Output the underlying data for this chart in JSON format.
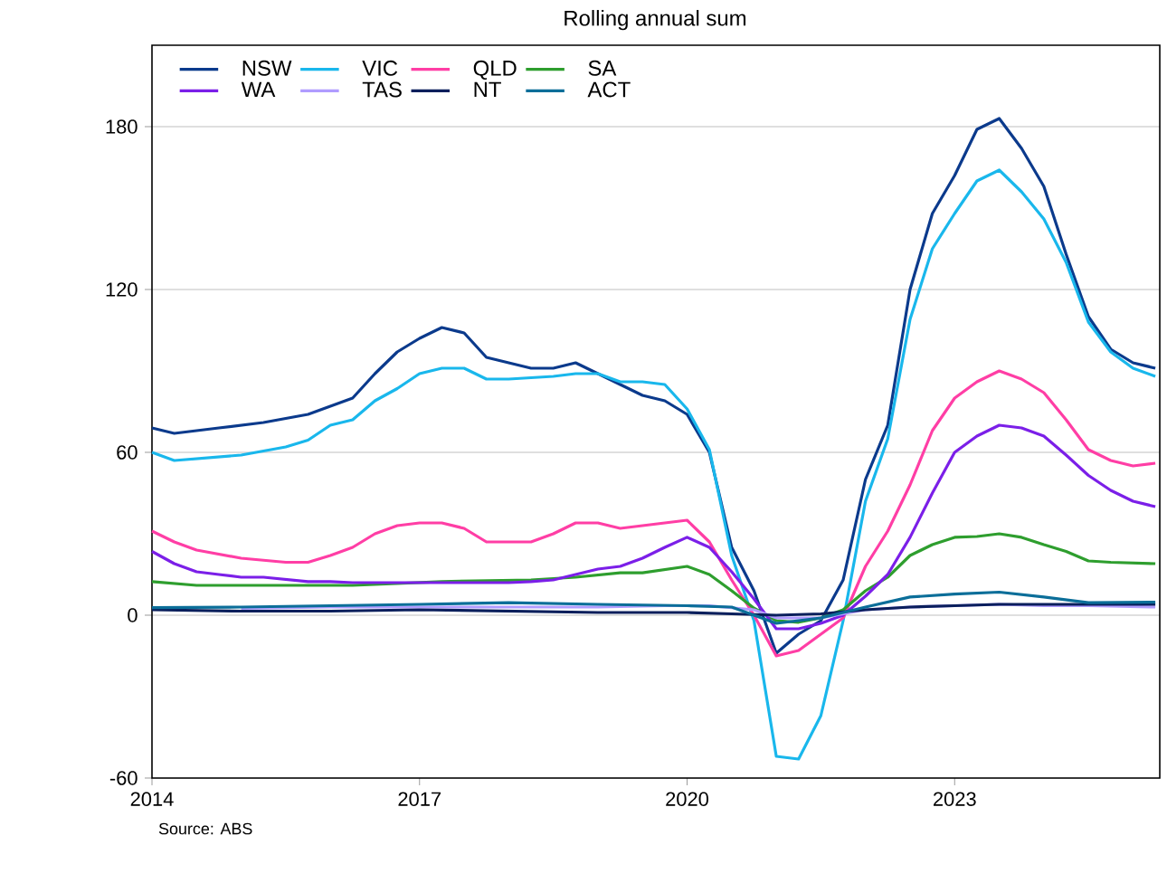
{
  "chart_data": {
    "type": "line",
    "title": "Rolling annual sum",
    "annotations": [
      "Source: ABS"
    ],
    "xlim": [
      2014,
      2025.3
    ],
    "xticks": [
      2014,
      2017,
      2020,
      2023
    ],
    "ylim": [
      -60,
      210
    ],
    "yticks": [
      -60,
      0,
      60,
      120,
      180
    ],
    "grid": "y",
    "legend": "top left",
    "marker": "none",
    "line_style": "solid",
    "series": [
      {
        "name": "NSW",
        "color": "#0b3a8c",
        "x": [
          2014,
          2014.25,
          2014.75,
          2015.25,
          2015.75,
          2016.25,
          2016.5,
          2016.75,
          2017,
          2017.25,
          2017.5,
          2017.75,
          2018,
          2018.25,
          2018.5,
          2018.75,
          2019,
          2019.25,
          2019.5,
          2019.75,
          2020,
          2020.25,
          2020.5,
          2020.75,
          2021,
          2021.25,
          2021.5,
          2021.75,
          2022,
          2022.25,
          2022.5,
          2022.75,
          2023,
          2023.25,
          2023.5,
          2023.75,
          2024,
          2024.25,
          2024.5,
          2024.75,
          2025,
          2025.25
        ],
        "values": [
          69,
          67,
          69,
          71,
          74,
          80,
          89,
          97,
          102,
          106,
          104,
          95,
          93,
          91,
          91,
          93,
          89,
          85,
          81,
          79,
          74,
          60,
          25,
          9,
          -14,
          -7,
          -2,
          13,
          50,
          70,
          120,
          148,
          162,
          179,
          183,
          172,
          158,
          133,
          110,
          98,
          93,
          91
        ]
      },
      {
        "name": "VIC",
        "color": "#19b7ec",
        "x": [
          2014,
          2014.25,
          2015,
          2015.5,
          2015.75,
          2016,
          2016.25,
          2016.5,
          2016.75,
          2017,
          2017.25,
          2017.5,
          2017.75,
          2018,
          2018.5,
          2018.75,
          2019,
          2019.25,
          2019.5,
          2019.75,
          2020,
          2020.25,
          2020.5,
          2020.75,
          2021,
          2021.25,
          2021.5,
          2021.75,
          2022,
          2022.25,
          2022.5,
          2022.75,
          2023,
          2023.25,
          2023.5,
          2023.75,
          2024,
          2024.25,
          2024.5,
          2024.75,
          2025,
          2025.25
        ],
        "values": [
          60,
          57,
          59,
          62,
          64.5,
          70,
          72,
          79,
          83.5,
          89,
          91,
          91,
          87,
          87,
          88,
          89,
          89,
          86,
          86,
          85,
          76,
          61,
          22,
          -2,
          -52,
          -53,
          -37,
          -2,
          42,
          65,
          109,
          135,
          148,
          160,
          164,
          156,
          146,
          130,
          108,
          97,
          91,
          88
        ]
      },
      {
        "name": "QLD",
        "color": "#ff3ea5",
        "x": [
          2014,
          2014.25,
          2014.5,
          2015,
          2015.5,
          2015.75,
          2016,
          2016.25,
          2016.5,
          2016.75,
          2017,
          2017.25,
          2017.5,
          2017.75,
          2018.25,
          2018.5,
          2018.75,
          2019,
          2019.25,
          2019.5,
          2019.75,
          2020,
          2020.25,
          2020.5,
          2020.75,
          2021,
          2021.25,
          2021.5,
          2021.75,
          2022,
          2022.25,
          2022.5,
          2022.75,
          2023,
          2023.25,
          2023.5,
          2023.75,
          2024,
          2024.25,
          2024.5,
          2024.75,
          2025,
          2025.25
        ],
        "values": [
          31,
          27,
          24,
          21,
          19.5,
          19.5,
          22,
          25,
          30,
          33,
          34,
          34,
          32,
          27,
          27,
          30,
          34,
          34,
          32,
          33,
          34,
          35,
          27,
          13,
          0,
          -15,
          -13,
          -7,
          -1,
          18,
          31,
          48,
          68,
          80,
          86,
          90,
          87,
          82,
          72,
          61,
          57,
          55,
          56
        ]
      },
      {
        "name": "SA",
        "color": "#2e9e2e",
        "x": [
          2014,
          2014.5,
          2015.25,
          2016.25,
          2017.25,
          2018.25,
          2018.75,
          2019.25,
          2019.5,
          2020,
          2020.25,
          2020.5,
          2020.75,
          2021,
          2021.25,
          2021.5,
          2021.75,
          2022,
          2022.25,
          2022.5,
          2022.75,
          2023,
          2023.25,
          2023.5,
          2023.75,
          2024,
          2024.25,
          2024.5,
          2024.75,
          2025.25
        ],
        "values": [
          12.4,
          11,
          11,
          11,
          12.4,
          13,
          14,
          15.6,
          15.6,
          18,
          15,
          9,
          2.6,
          -2,
          -2.6,
          -1,
          2,
          9,
          14,
          22,
          26,
          28.7,
          29,
          30,
          28.7,
          26,
          23.5,
          20,
          19.5,
          19
        ]
      },
      {
        "name": "WA",
        "color": "#7b1fe8",
        "x": [
          2014,
          2014.25,
          2014.5,
          2014.75,
          2015,
          2015.25,
          2015.75,
          2016,
          2016.25,
          2016.5,
          2017.25,
          2018,
          2018.25,
          2018.5,
          2018.75,
          2019,
          2019.25,
          2019.5,
          2019.75,
          2020,
          2020.25,
          2020.5,
          2020.75,
          2021,
          2021.25,
          2021.5,
          2021.75,
          2022,
          2022.25,
          2022.5,
          2022.75,
          2023,
          2023.25,
          2023.5,
          2023.75,
          2024,
          2024.25,
          2024.5,
          2024.75,
          2025,
          2025.25
        ],
        "values": [
          23.5,
          19,
          16,
          15,
          14,
          14,
          12.4,
          12.4,
          12,
          12,
          12,
          12,
          12.4,
          13,
          15,
          17,
          18,
          21,
          25,
          28.7,
          25,
          16,
          6,
          -5,
          -5,
          -3,
          0,
          7,
          15,
          28.7,
          45,
          60,
          66,
          70,
          69,
          66,
          59,
          51.5,
          46,
          42,
          40
        ]
      },
      {
        "name": "TAS",
        "color": "#b09cff",
        "x": [
          2015,
          2016,
          2017,
          2018,
          2019,
          2019.75,
          2020.25,
          2020.75,
          2021,
          2021.5,
          2022,
          2022.5,
          2023,
          2023.5,
          2024,
          2024.5,
          2025.25
        ],
        "values": [
          2.5,
          3,
          3,
          3,
          3,
          3.5,
          3.5,
          2,
          -1,
          -1,
          2,
          3,
          3.5,
          4,
          3.5,
          3.5,
          3
        ]
      },
      {
        "name": "NT",
        "color": "#0a1f5c",
        "x": [
          2014,
          2015,
          2016,
          2017,
          2018,
          2019,
          2020,
          2020.5,
          2021,
          2021.5,
          2022,
          2022.5,
          2023,
          2023.5,
          2024,
          2024.5,
          2025.25
        ],
        "values": [
          2,
          1.5,
          1.5,
          2,
          1.5,
          1,
          1,
          0.5,
          0,
          0.5,
          2,
          3,
          3.5,
          4,
          4,
          4,
          4
        ]
      },
      {
        "name": "ACT",
        "color": "#0b6e99",
        "x": [
          2014,
          2015,
          2016,
          2017,
          2018,
          2019,
          2020,
          2020.5,
          2021,
          2021.5,
          2022,
          2022.5,
          2023,
          2023.5,
          2024,
          2024.5,
          2025.25
        ],
        "values": [
          2.8,
          3,
          3.5,
          4,
          4.6,
          4,
          3.5,
          3,
          -3,
          -1,
          3,
          6.7,
          7.8,
          8.5,
          6.7,
          4.6,
          4.8
        ]
      }
    ]
  }
}
